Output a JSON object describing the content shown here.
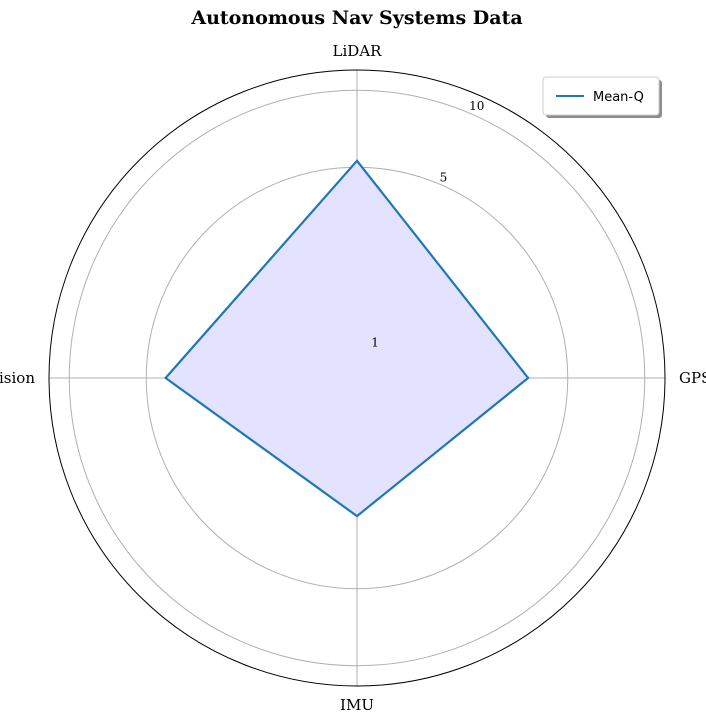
{
  "chart_data": {
    "type": "radar",
    "title": "Autonomous Nav Systems Data",
    "categories": [
      "LiDAR",
      "GPS",
      "IMU",
      "Vision"
    ],
    "series": [
      {
        "name": "Mean-Q",
        "values": [
          5.3,
          3.5,
          2.6,
          4.2
        ],
        "color": "#1f77b4",
        "fill": "#e3e3ff"
      }
    ],
    "radial_scale": "log",
    "rlim": [
      0.75,
      12
    ],
    "rticks": [
      1,
      5,
      10
    ],
    "rtick_labels": [
      "1",
      "5",
      "10"
    ],
    "grid": true,
    "legend": "top-right",
    "colors": {
      "grid": "#b0b0b0",
      "outer_frame": "#000000"
    }
  }
}
